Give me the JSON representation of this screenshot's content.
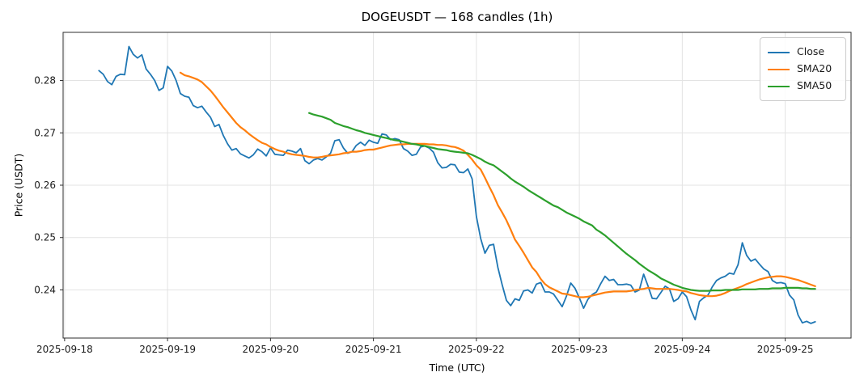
{
  "title": "DOGEUSDT — 168 candles (1h)",
  "legend": [
    {
      "label": "Close",
      "color": "#1f77b4"
    },
    {
      "label": "SMA20",
      "color": "#ff7f0e"
    },
    {
      "label": "SMA50",
      "color": "#2ca02c"
    }
  ],
  "colors": {
    "background": "#ffffff",
    "grid": "#e3e3e3",
    "spine": "#2e2e2e",
    "tick_text": "#1a1a1a"
  },
  "chart_data": {
    "type": "line",
    "title": "DOGEUSDT — 168 candles (1h)",
    "symbol": "DOGEUSDT",
    "candles": 168,
    "interval": "1h",
    "xlabel": "Time (UTC)",
    "ylabel": "Price (USDT)",
    "grid": true,
    "legend_position": "upper right",
    "x_tick_labels": [
      "2025-09-18",
      "2025-09-19",
      "2025-09-20",
      "2025-09-21",
      "2025-09-22",
      "2025-09-23",
      "2025-09-24",
      "2025-09-25"
    ],
    "x_tick_hours": [
      0,
      24,
      48,
      72,
      96,
      120,
      144,
      168
    ],
    "y_ticks": [
      0.24,
      0.25,
      0.26,
      0.27,
      0.28
    ],
    "xlim": [
      -0.35,
      183.35
    ],
    "ylim": [
      0.2308,
      0.2892
    ],
    "x_unit": "hours since first x tick (1 candle = 1 hour)",
    "series": [
      {
        "name": "Close",
        "color": "#1f77b4",
        "width": 1.8,
        "start_hour": 8,
        "values": [
          0.2819,
          0.2812,
          0.2798,
          0.2792,
          0.2808,
          0.2812,
          0.2811,
          0.2865,
          0.285,
          0.2843,
          0.2849,
          0.2822,
          0.2812,
          0.28,
          0.2781,
          0.2786,
          0.2827,
          0.2818,
          0.28,
          0.2775,
          0.277,
          0.2768,
          0.2752,
          0.2748,
          0.2751,
          0.274,
          0.273,
          0.2712,
          0.2716,
          0.2695,
          0.2679,
          0.2667,
          0.267,
          0.266,
          0.2656,
          0.2652,
          0.2658,
          0.2669,
          0.2664,
          0.2656,
          0.2671,
          0.2659,
          0.2658,
          0.2657,
          0.2667,
          0.2665,
          0.2662,
          0.267,
          0.2647,
          0.2641,
          0.2648,
          0.2651,
          0.2648,
          0.2654,
          0.2661,
          0.2685,
          0.2687,
          0.2671,
          0.2661,
          0.2664,
          0.2676,
          0.2682,
          0.2676,
          0.2686,
          0.2682,
          0.268,
          0.2698,
          0.2696,
          0.2687,
          0.2689,
          0.2687,
          0.267,
          0.2665,
          0.2657,
          0.2659,
          0.2673,
          0.2675,
          0.2671,
          0.2663,
          0.2643,
          0.2633,
          0.2634,
          0.264,
          0.2639,
          0.2625,
          0.2624,
          0.2631,
          0.2612,
          0.254,
          0.2498,
          0.247,
          0.2485,
          0.2487,
          0.2443,
          0.241,
          0.238,
          0.237,
          0.2383,
          0.238,
          0.2398,
          0.24,
          0.2394,
          0.2411,
          0.2414,
          0.2396,
          0.2396,
          0.2392,
          0.238,
          0.2368,
          0.2388,
          0.2413,
          0.2403,
          0.2385,
          0.2365,
          0.2382,
          0.2391,
          0.2396,
          0.2412,
          0.2426,
          0.2418,
          0.242,
          0.241,
          0.241,
          0.2411,
          0.2409,
          0.2396,
          0.24,
          0.243,
          0.2408,
          0.2384,
          0.2383,
          0.2395,
          0.2407,
          0.2402,
          0.2378,
          0.2383,
          0.2396,
          0.2387,
          0.2362,
          0.2343,
          0.2378,
          0.2385,
          0.239,
          0.2406,
          0.2418,
          0.2423,
          0.2426,
          0.2432,
          0.243,
          0.2448,
          0.249,
          0.2466,
          0.2455,
          0.2459,
          0.2449,
          0.244,
          0.2435,
          0.2418,
          0.2413,
          0.2414,
          0.2412,
          0.239,
          0.2381,
          0.2352,
          0.2337,
          0.234,
          0.2336,
          0.2339
        ]
      },
      {
        "name": "SMA20",
        "color": "#ff7f0e",
        "width": 2.2,
        "start_hour": 27,
        "values": [
          0.2815,
          0.281,
          0.2808,
          0.2805,
          0.2802,
          0.2797,
          0.2789,
          0.2781,
          0.2771,
          0.276,
          0.2749,
          0.2739,
          0.2729,
          0.2719,
          0.2711,
          0.2705,
          0.2698,
          0.2692,
          0.2686,
          0.2681,
          0.2678,
          0.2673,
          0.2669,
          0.2666,
          0.2664,
          0.2661,
          0.2659,
          0.2658,
          0.2657,
          0.2656,
          0.2654,
          0.2653,
          0.2653,
          0.2654,
          0.2656,
          0.2657,
          0.2658,
          0.2659,
          0.2661,
          0.2662,
          0.2664,
          0.2664,
          0.2665,
          0.2667,
          0.2668,
          0.2668,
          0.267,
          0.2672,
          0.2674,
          0.2676,
          0.2677,
          0.2678,
          0.2678,
          0.2679,
          0.2679,
          0.2679,
          0.2679,
          0.2679,
          0.2678,
          0.2678,
          0.2677,
          0.2677,
          0.2676,
          0.2674,
          0.2673,
          0.267,
          0.2666,
          0.2658,
          0.2649,
          0.2638,
          0.263,
          0.2614,
          0.2597,
          0.2581,
          0.2562,
          0.2548,
          0.2533,
          0.2515,
          0.2496,
          0.2484,
          0.2471,
          0.2457,
          0.2443,
          0.2434,
          0.2421,
          0.2411,
          0.2405,
          0.2401,
          0.2397,
          0.2393,
          0.2392,
          0.239,
          0.2388,
          0.2386,
          0.2386,
          0.2387,
          0.2389,
          0.2391,
          0.2393,
          0.2395,
          0.2396,
          0.2397,
          0.2397,
          0.2397,
          0.2397,
          0.2398,
          0.24,
          0.2401,
          0.2402,
          0.2404,
          0.2403,
          0.2402,
          0.2402,
          0.2402,
          0.2402,
          0.2401,
          0.24,
          0.2398,
          0.2397,
          0.2394,
          0.2392,
          0.239,
          0.2389,
          0.2388,
          0.2388,
          0.2389,
          0.2391,
          0.2394,
          0.2398,
          0.2401,
          0.2404,
          0.2407,
          0.2411,
          0.2414,
          0.2417,
          0.242,
          0.2422,
          0.2424,
          0.2425,
          0.2426,
          0.2426,
          0.2425,
          0.2423,
          0.2421,
          0.2419,
          0.2416,
          0.2413,
          0.241,
          0.2407
        ]
      },
      {
        "name": "SMA50",
        "color": "#2ca02c",
        "width": 2.2,
        "start_hour": 57,
        "values": [
          0.2738,
          0.2735,
          0.2733,
          0.2731,
          0.2728,
          0.2725,
          0.2719,
          0.2716,
          0.2713,
          0.2711,
          0.2708,
          0.2705,
          0.2703,
          0.27,
          0.2698,
          0.2696,
          0.2694,
          0.2692,
          0.269,
          0.2688,
          0.2686,
          0.2685,
          0.2683,
          0.2681,
          0.2679,
          0.2678,
          0.2676,
          0.2675,
          0.2673,
          0.2671,
          0.2669,
          0.2668,
          0.2667,
          0.2665,
          0.2664,
          0.2663,
          0.2662,
          0.2661,
          0.2658,
          0.2654,
          0.265,
          0.2645,
          0.2641,
          0.2638,
          0.2632,
          0.2626,
          0.262,
          0.2613,
          0.2607,
          0.2602,
          0.2597,
          0.2591,
          0.2586,
          0.2581,
          0.2576,
          0.2571,
          0.2566,
          0.2561,
          0.2558,
          0.2553,
          0.2548,
          0.2544,
          0.254,
          0.2536,
          0.2531,
          0.2527,
          0.2523,
          0.2515,
          0.251,
          0.2504,
          0.2497,
          0.249,
          0.2483,
          0.2476,
          0.2469,
          0.2463,
          0.2457,
          0.245,
          0.2444,
          0.2438,
          0.2433,
          0.2428,
          0.2422,
          0.2418,
          0.2414,
          0.241,
          0.2407,
          0.2404,
          0.2402,
          0.24,
          0.2399,
          0.2398,
          0.2398,
          0.2398,
          0.2399,
          0.2399,
          0.2399,
          0.24,
          0.24,
          0.24,
          0.24,
          0.2401,
          0.2401,
          0.2401,
          0.2401,
          0.2402,
          0.2402,
          0.2402,
          0.2403,
          0.2403,
          0.2403,
          0.2404,
          0.2404,
          0.2404,
          0.2404,
          0.2403,
          0.2403,
          0.2402,
          0.2402
        ]
      }
    ]
  }
}
